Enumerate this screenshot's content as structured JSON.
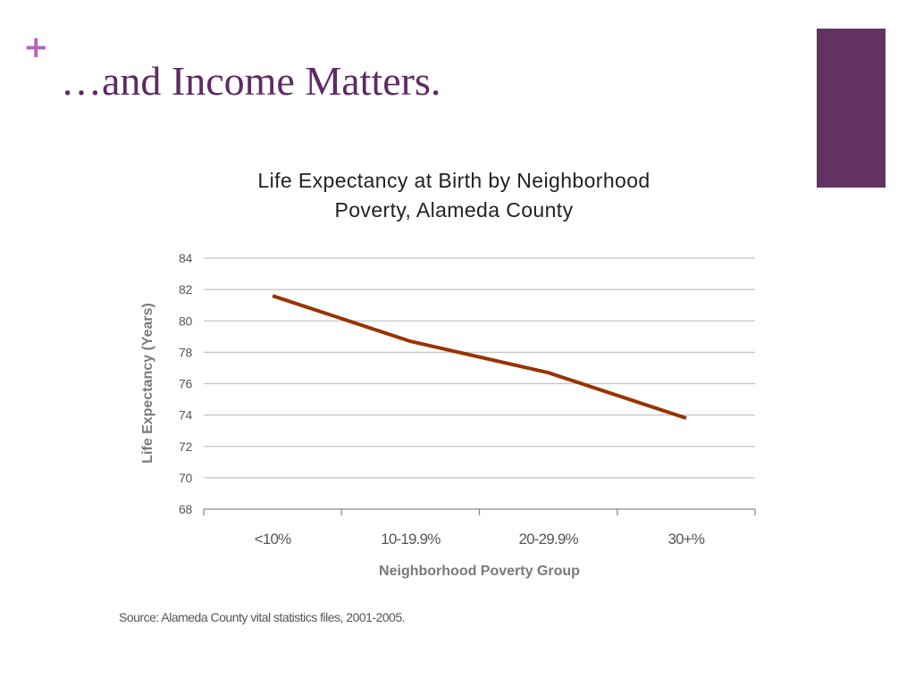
{
  "slide": {
    "plus_glyph": "+",
    "title": "…and Income Matters.",
    "source": "Source: Alameda County vital statistics files, 2001-2005."
  },
  "colors": {
    "accent_block": "#623262",
    "plus": "#b266b8",
    "title": "#5e2b63",
    "line": "#993300"
  },
  "chart_data": {
    "type": "line",
    "title_lines": [
      "Life Expectancy at Birth by Neighborhood",
      "Poverty, Alameda County"
    ],
    "xlabel": "Neighborhood Poverty Group",
    "ylabel": "Life Expectancy (Years)",
    "categories": [
      "<10%",
      "10-19.9%",
      "20-29.9%",
      "30+%"
    ],
    "series": [
      {
        "values": [
          81.6,
          78.7,
          76.7,
          73.8
        ],
        "color": "#993300"
      }
    ],
    "ylim": [
      68,
      84
    ],
    "yticks": [
      68,
      70,
      72,
      74,
      76,
      78,
      80,
      82,
      84
    ],
    "grid": true,
    "legend": "none"
  }
}
